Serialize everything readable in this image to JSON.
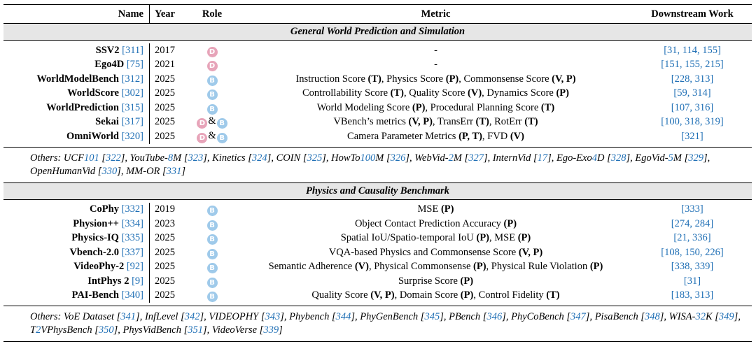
{
  "headers": {
    "name": "Name",
    "year": "Year",
    "role": "Role",
    "metric": "Metric",
    "downstream": "Downstream Work"
  },
  "role_badges": {
    "dataset": {
      "letter": "D",
      "color": "#e7a4b9"
    },
    "benchmark": {
      "letter": "B",
      "color": "#9fcaea"
    },
    "joiner": "&"
  },
  "sections": [
    {
      "title": "General World Prediction and Simulation",
      "rows": [
        {
          "name": "SSV2",
          "ref": "[311]",
          "year": "2017",
          "roles": [
            "D"
          ],
          "metric": "-",
          "downstream": "[31, 114, 155]"
        },
        {
          "name": "Ego4D",
          "ref": "[75]",
          "year": "2021",
          "roles": [
            "D"
          ],
          "metric": "-",
          "downstream": "[151, 155, 215]"
        },
        {
          "name": "WorldModelBench",
          "ref": "[312]",
          "year": "2025",
          "roles": [
            "B"
          ],
          "metric": "Instruction Score (T), Physics Score (P), Commonsense Score (V, P)",
          "downstream": "[228, 313]"
        },
        {
          "name": "WorldScore",
          "ref": "[302]",
          "year": "2025",
          "roles": [
            "B"
          ],
          "metric": "Controllability Score (T), Quality Score (V), Dynamics Score (P)",
          "downstream": "[59, 314]"
        },
        {
          "name": "WorldPrediction",
          "ref": "[315]",
          "year": "2025",
          "roles": [
            "B"
          ],
          "metric": "World Modeling Score (P), Procedural Planning Score (T)",
          "downstream": "[107, 316]"
        },
        {
          "name": "Sekai",
          "ref": "[317]",
          "year": "2025",
          "roles": [
            "D",
            "B"
          ],
          "metric": "VBench’s metrics (V, P), TransErr (T), RotErr (T)",
          "downstream": "[100, 318, 319]"
        },
        {
          "name": "OmniWorld",
          "ref": "[320]",
          "year": "2025",
          "roles": [
            "D",
            "B"
          ],
          "metric": "Camera Parameter Metrics (P, T), FVD (V)",
          "downstream": "[321]"
        }
      ],
      "others": "Others: UCF101 [322], YouTube-8M [323], Kinetics [324], COIN [325], HowTo100M [326], WebVid-2M [327], InternVid [17], Ego-Exo4D [328], EgoVid-5M [329], OpenHumanVid [330], MM-OR [331]"
    },
    {
      "title": "Physics and Causality Benchmark",
      "rows": [
        {
          "name": "CoPhy",
          "ref": "[332]",
          "year": "2019",
          "roles": [
            "B"
          ],
          "metric": "MSE (P)",
          "downstream": "[333]"
        },
        {
          "name": "Physion++",
          "ref": "[334]",
          "year": "2023",
          "roles": [
            "B"
          ],
          "metric": "Object Contact Prediction Accuracy (P)",
          "downstream": "[274, 284]"
        },
        {
          "name": "Physics-IQ",
          "ref": "[335]",
          "year": "2025",
          "roles": [
            "B"
          ],
          "metric": "Spatial IoU/Spatio-temporal IoU (P), MSE (P)",
          "downstream": "[21, 336]"
        },
        {
          "name": "Vbench-2.0",
          "ref": "[337]",
          "year": "2025",
          "roles": [
            "B"
          ],
          "metric": "VQA-based Physics and Commonsense Score (V, P)",
          "downstream": "[108, 150, 226]"
        },
        {
          "name": "VideoPhy-2",
          "ref": "[92]",
          "year": "2025",
          "roles": [
            "B"
          ],
          "metric": "Semantic Adherence (V), Physical Commonsense (P), Physical Rule Violation (P)",
          "downstream": "[338, 339]"
        },
        {
          "name": "IntPhys 2",
          "ref": "[9]",
          "year": "2025",
          "roles": [
            "B"
          ],
          "metric": "Surprise Score (P)",
          "downstream": "[31]"
        },
        {
          "name": "PAI-Bench",
          "ref": "[340]",
          "year": "2025",
          "roles": [
            "B"
          ],
          "metric": "Quality Score (V, P), Domain Score (P), Control Fidelity (T)",
          "downstream": "[183, 313]"
        }
      ],
      "others": "Others: VoE Dataset [341], InfLevel [342], VIDEOPHY [343], Phybench [344], PhyGenBench [345], PBench [346], PhyCoBench [347], PisaBench [348], WISA-32K [349], T2VPhysBench [350], PhysVidBench [351], VideoVerse [339]"
    }
  ]
}
